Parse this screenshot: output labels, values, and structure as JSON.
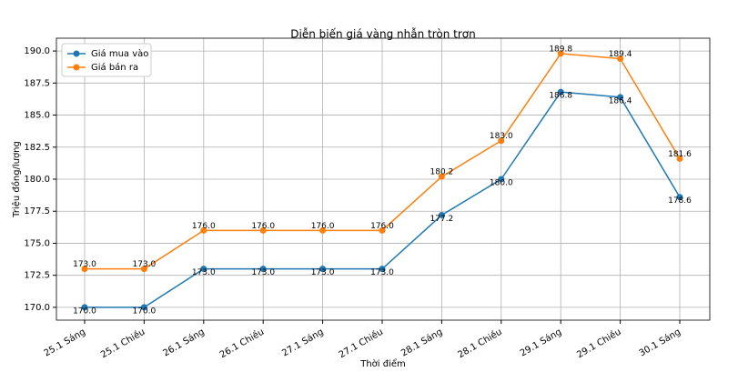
{
  "chart_data": {
    "type": "line",
    "title": "Diễn biến giá vàng nhẫn tròn trơn",
    "x_label": "Thời điểm",
    "y_label": "Triệu đồng/lượng",
    "categories": [
      "25.1 Sáng",
      "25.1 Chiều",
      "26.1 Sáng",
      "26.1 Chiều",
      "27.1 Sáng",
      "27.1 Chiều",
      "28.1 Sáng",
      "28.1 Chiều",
      "29.1 Sáng",
      "29.1 Chiều",
      "30.1 Sáng"
    ],
    "series": [
      {
        "name": "Giá mua vào",
        "color": "#1f77b4",
        "values": [
          170,
          170,
          173,
          173,
          173,
          173,
          177.2,
          180,
          186.8,
          186.4,
          178.6
        ],
        "value_labels": [
          "170.0",
          "170.0",
          "173.0",
          "173.0",
          "173.0",
          "173.0",
          "177.2",
          "180.0",
          "186.8",
          "186.4",
          "178.6"
        ]
      },
      {
        "name": "Giá bán ra",
        "color": "#ff7f0e",
        "values": [
          173,
          173,
          176,
          176,
          176,
          176,
          180.2,
          183,
          189.8,
          189.4,
          181.6
        ],
        "value_labels": [
          "173.0",
          "173.0",
          "176.0",
          "176.0",
          "176.0",
          "176.0",
          "180.2",
          "183.0",
          "189.8",
          "189.4",
          "181.6"
        ]
      }
    ],
    "ylim": [
      169,
      191
    ],
    "yticks": [
      {
        "value": 170,
        "label": "170.0"
      },
      172.5,
      {
        "value": 175,
        "label": "175.0"
      },
      177.5,
      {
        "value": 180,
        "label": "180.0"
      },
      182.5,
      {
        "value": 185,
        "label": "185.0"
      },
      187.5,
      {
        "value": 190,
        "label": "190.0"
      }
    ],
    "grid": true,
    "legend": "upper-left"
  }
}
